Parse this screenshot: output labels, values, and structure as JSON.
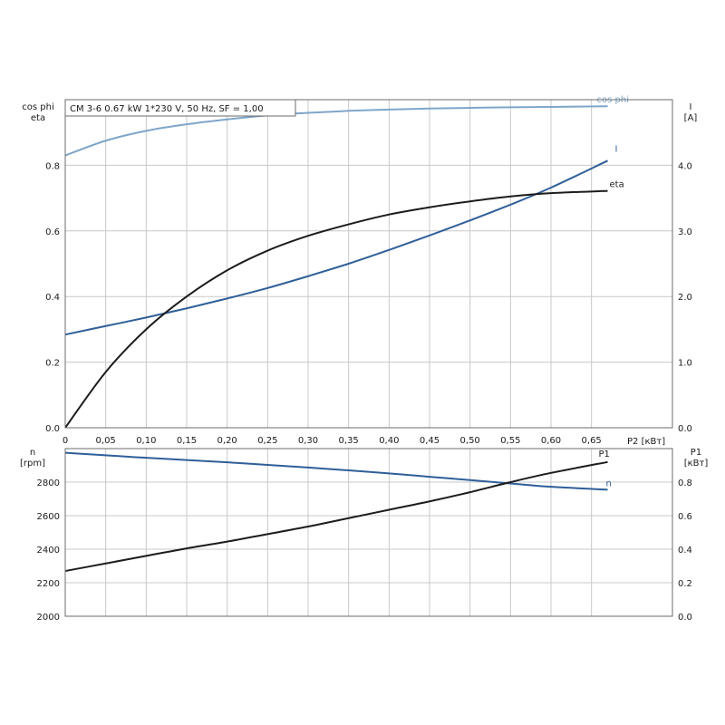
{
  "chart_data": [
    {
      "type": "line",
      "title": "CM 3-6   0.67 kW   1*230 V, 50 Hz, SF = 1,00",
      "x": [
        0,
        0.05,
        0.1,
        0.15,
        0.2,
        0.25,
        0.3,
        0.35,
        0.4,
        0.45,
        0.5,
        0.55,
        0.6,
        0.67
      ],
      "x_tick_labels": [
        "0",
        "0,05",
        "0,10",
        "0,15",
        "0,20",
        "0,25",
        "0,30",
        "0,35",
        "0,40",
        "0,45",
        "0,50",
        "0,55",
        "0,60",
        "0,65"
      ],
      "x_ticks": [
        0,
        0.05,
        0.1,
        0.15,
        0.2,
        0.25,
        0.3,
        0.35,
        0.4,
        0.45,
        0.5,
        0.55,
        0.6,
        0.65
      ],
      "xlabel": "P2 [кВт]",
      "xlim": [
        0,
        0.75
      ],
      "ylabel_left": [
        "cos phi",
        "eta"
      ],
      "ylim_left": [
        0,
        1.0
      ],
      "yticks_left": [
        "0.0",
        "0.2",
        "0.4",
        "0.6",
        "0.8"
      ],
      "yticks_left_values": [
        0,
        0.2,
        0.4,
        0.6,
        0.8
      ],
      "ylabel_right": [
        "I",
        "[A]"
      ],
      "ylim_right": [
        0,
        5.0
      ],
      "yticks_right": [
        "0.0",
        "1.0",
        "2.0",
        "3.0",
        "4.0"
      ],
      "yticks_right_values": [
        0,
        1.0,
        2.0,
        3.0,
        4.0
      ],
      "grid": true,
      "series": [
        {
          "name": "cos phi",
          "axis": "left",
          "color": "#7fa6c9",
          "values": [
            0.83,
            0.875,
            0.905,
            0.925,
            0.94,
            0.952,
            0.96,
            0.966,
            0.97,
            0.973,
            0.975,
            0.977,
            0.978,
            0.98
          ]
        },
        {
          "name": "I",
          "axis": "right",
          "color": "#2f5f98",
          "values": [
            1.42,
            1.55,
            1.68,
            1.82,
            1.97,
            2.13,
            2.31,
            2.5,
            2.71,
            2.93,
            3.16,
            3.4,
            3.66,
            4.07
          ]
        },
        {
          "name": "eta",
          "axis": "left",
          "color": "#1c1c1c",
          "values": [
            0.0,
            0.17,
            0.3,
            0.4,
            0.48,
            0.54,
            0.585,
            0.62,
            0.65,
            0.672,
            0.69,
            0.705,
            0.715,
            0.722
          ]
        }
      ]
    },
    {
      "type": "line",
      "x": [
        0,
        0.05,
        0.1,
        0.15,
        0.2,
        0.25,
        0.3,
        0.35,
        0.4,
        0.45,
        0.5,
        0.55,
        0.6,
        0.67
      ],
      "xlim": [
        0,
        0.75
      ],
      "ylabel_left": [
        "n",
        "[rpm]"
      ],
      "ylim_left": [
        2000,
        3000
      ],
      "yticks_left": [
        "2000",
        "2200",
        "2400",
        "2600",
        "2800"
      ],
      "yticks_left_values": [
        2000,
        2200,
        2400,
        2600,
        2800
      ],
      "ylabel_right": [
        "P1",
        "[кВт]"
      ],
      "ylim_right": [
        0,
        1.0
      ],
      "yticks_right": [
        "0.0",
        "0.2",
        "0.4",
        "0.6",
        "0.8"
      ],
      "yticks_right_values": [
        0,
        0.2,
        0.4,
        0.6,
        0.8
      ],
      "grid": true,
      "series": [
        {
          "name": "n",
          "axis": "left",
          "color": "#2f5f98",
          "values": [
            2975,
            2960,
            2945,
            2932,
            2918,
            2903,
            2887,
            2870,
            2852,
            2832,
            2812,
            2792,
            2772,
            2755
          ]
        },
        {
          "name": "P1",
          "axis": "right",
          "color": "#1c1c1c",
          "values": [
            0.27,
            0.315,
            0.36,
            0.405,
            0.445,
            0.49,
            0.535,
            0.585,
            0.635,
            0.685,
            0.74,
            0.8,
            0.855,
            0.92
          ]
        }
      ]
    }
  ]
}
